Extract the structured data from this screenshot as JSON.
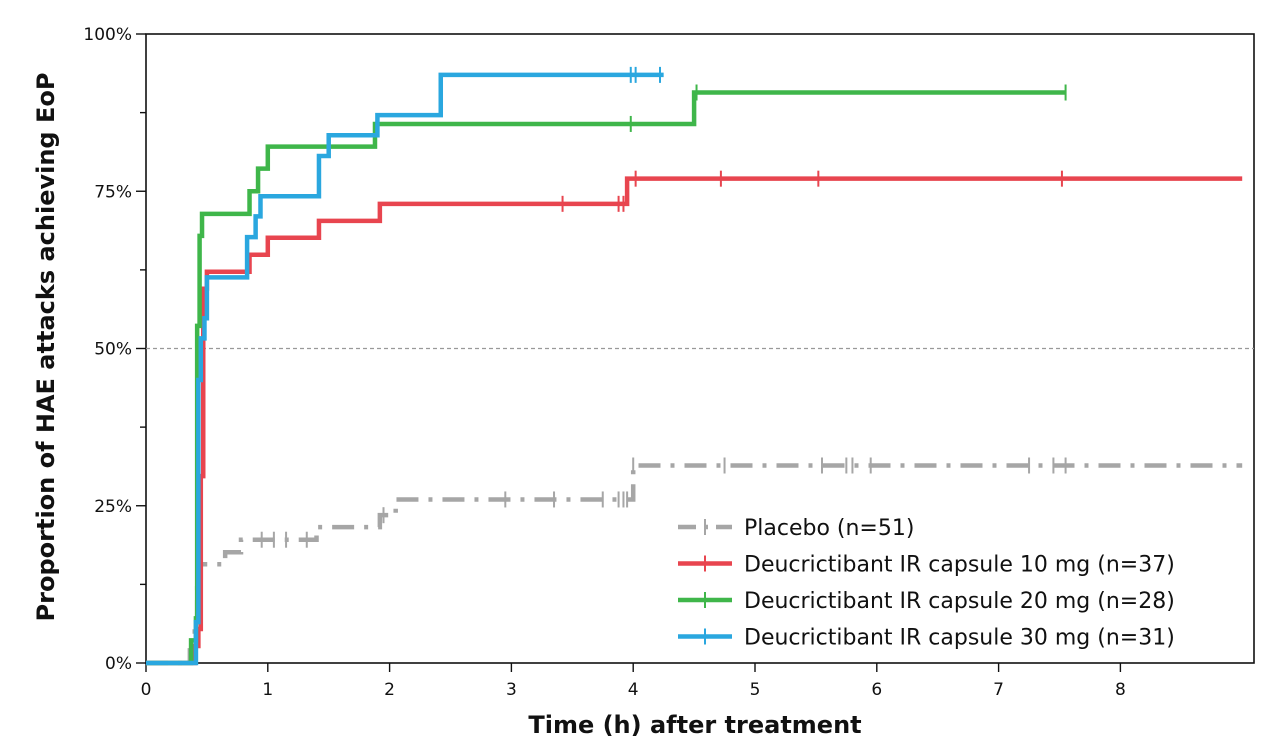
{
  "chart_data": {
    "type": "line",
    "step": true,
    "title": "",
    "xlabel": "Time (h) after treatment",
    "ylabel": "Proportion of HAE attacks achieving EoP",
    "xlim": [
      0,
      9
    ],
    "ylim": [
      0,
      1
    ],
    "x_ticks": [
      "0",
      "1",
      "2",
      "3",
      "4",
      "5",
      "6",
      "7",
      "8"
    ],
    "y_ticks": [
      "0%",
      "25%",
      "50%",
      "75%",
      "100%"
    ],
    "reference_line_y": 0.5,
    "legend_position": "bottom-right",
    "grid": false,
    "series": [
      {
        "name": "Placebo (n=51)",
        "color": "#a6a6a6",
        "dash": "dashdot",
        "x": [
          0,
          0.32,
          0.36,
          0.4,
          0.42,
          0.45,
          0.65,
          0.78,
          0.95,
          1.4,
          1.92,
          2.05,
          4.0,
          9.0
        ],
        "y": [
          0,
          0,
          0.02,
          0.05,
          0.13,
          0.157,
          0.176,
          0.196,
          0.196,
          0.216,
          0.235,
          0.26,
          0.314,
          0.314
        ],
        "censor_x": [
          0.95,
          1.05,
          1.15,
          1.32,
          1.95,
          2.95,
          3.35,
          3.75,
          3.88,
          3.92,
          3.95,
          4.0,
          4.75,
          5.55,
          5.75,
          5.8,
          5.95,
          7.25,
          7.45,
          7.55
        ]
      },
      {
        "name": "Deucrictibant IR capsule 10 mg (n=37)",
        "color": "#e8454f",
        "dash": "solid",
        "x": [
          0,
          0.35,
          0.4,
          0.43,
          0.45,
          0.47,
          0.5,
          0.6,
          0.72,
          0.85,
          1.0,
          1.2,
          1.42,
          1.6,
          1.92,
          3.9,
          3.95,
          9.0
        ],
        "y": [
          0,
          0,
          0.027,
          0.054,
          0.297,
          0.595,
          0.622,
          0.622,
          0.622,
          0.649,
          0.676,
          0.676,
          0.703,
          0.703,
          0.73,
          0.73,
          0.77,
          0.77
        ],
        "censor_x": [
          3.42,
          3.88,
          3.92,
          4.02,
          4.72,
          5.52,
          7.52
        ]
      },
      {
        "name": "Deucrictibant IR capsule 20 mg (n=28)",
        "color": "#3fb64a",
        "dash": "solid",
        "x": [
          0,
          0.33,
          0.37,
          0.41,
          0.42,
          0.44,
          0.46,
          0.85,
          0.92,
          1.0,
          1.88,
          4.5,
          7.55
        ],
        "y": [
          0,
          0,
          0.036,
          0.071,
          0.536,
          0.679,
          0.714,
          0.75,
          0.786,
          0.821,
          0.857,
          0.907,
          0.907
        ],
        "censor_x": [
          3.98,
          4.52,
          7.55
        ]
      },
      {
        "name": "Deucrictibant IR capsule 30 mg (n=31)",
        "color": "#2aa7df",
        "dash": "solid",
        "x": [
          0,
          0.39,
          0.41,
          0.43,
          0.45,
          0.48,
          0.5,
          0.83,
          0.9,
          0.94,
          1.42,
          1.5,
          1.9,
          2.42,
          4.25
        ],
        "y": [
          0,
          0,
          0.065,
          0.45,
          0.516,
          0.548,
          0.613,
          0.677,
          0.71,
          0.742,
          0.806,
          0.839,
          0.871,
          0.935,
          0.935
        ],
        "censor_x": [
          3.98,
          4.02,
          4.22
        ]
      }
    ]
  }
}
